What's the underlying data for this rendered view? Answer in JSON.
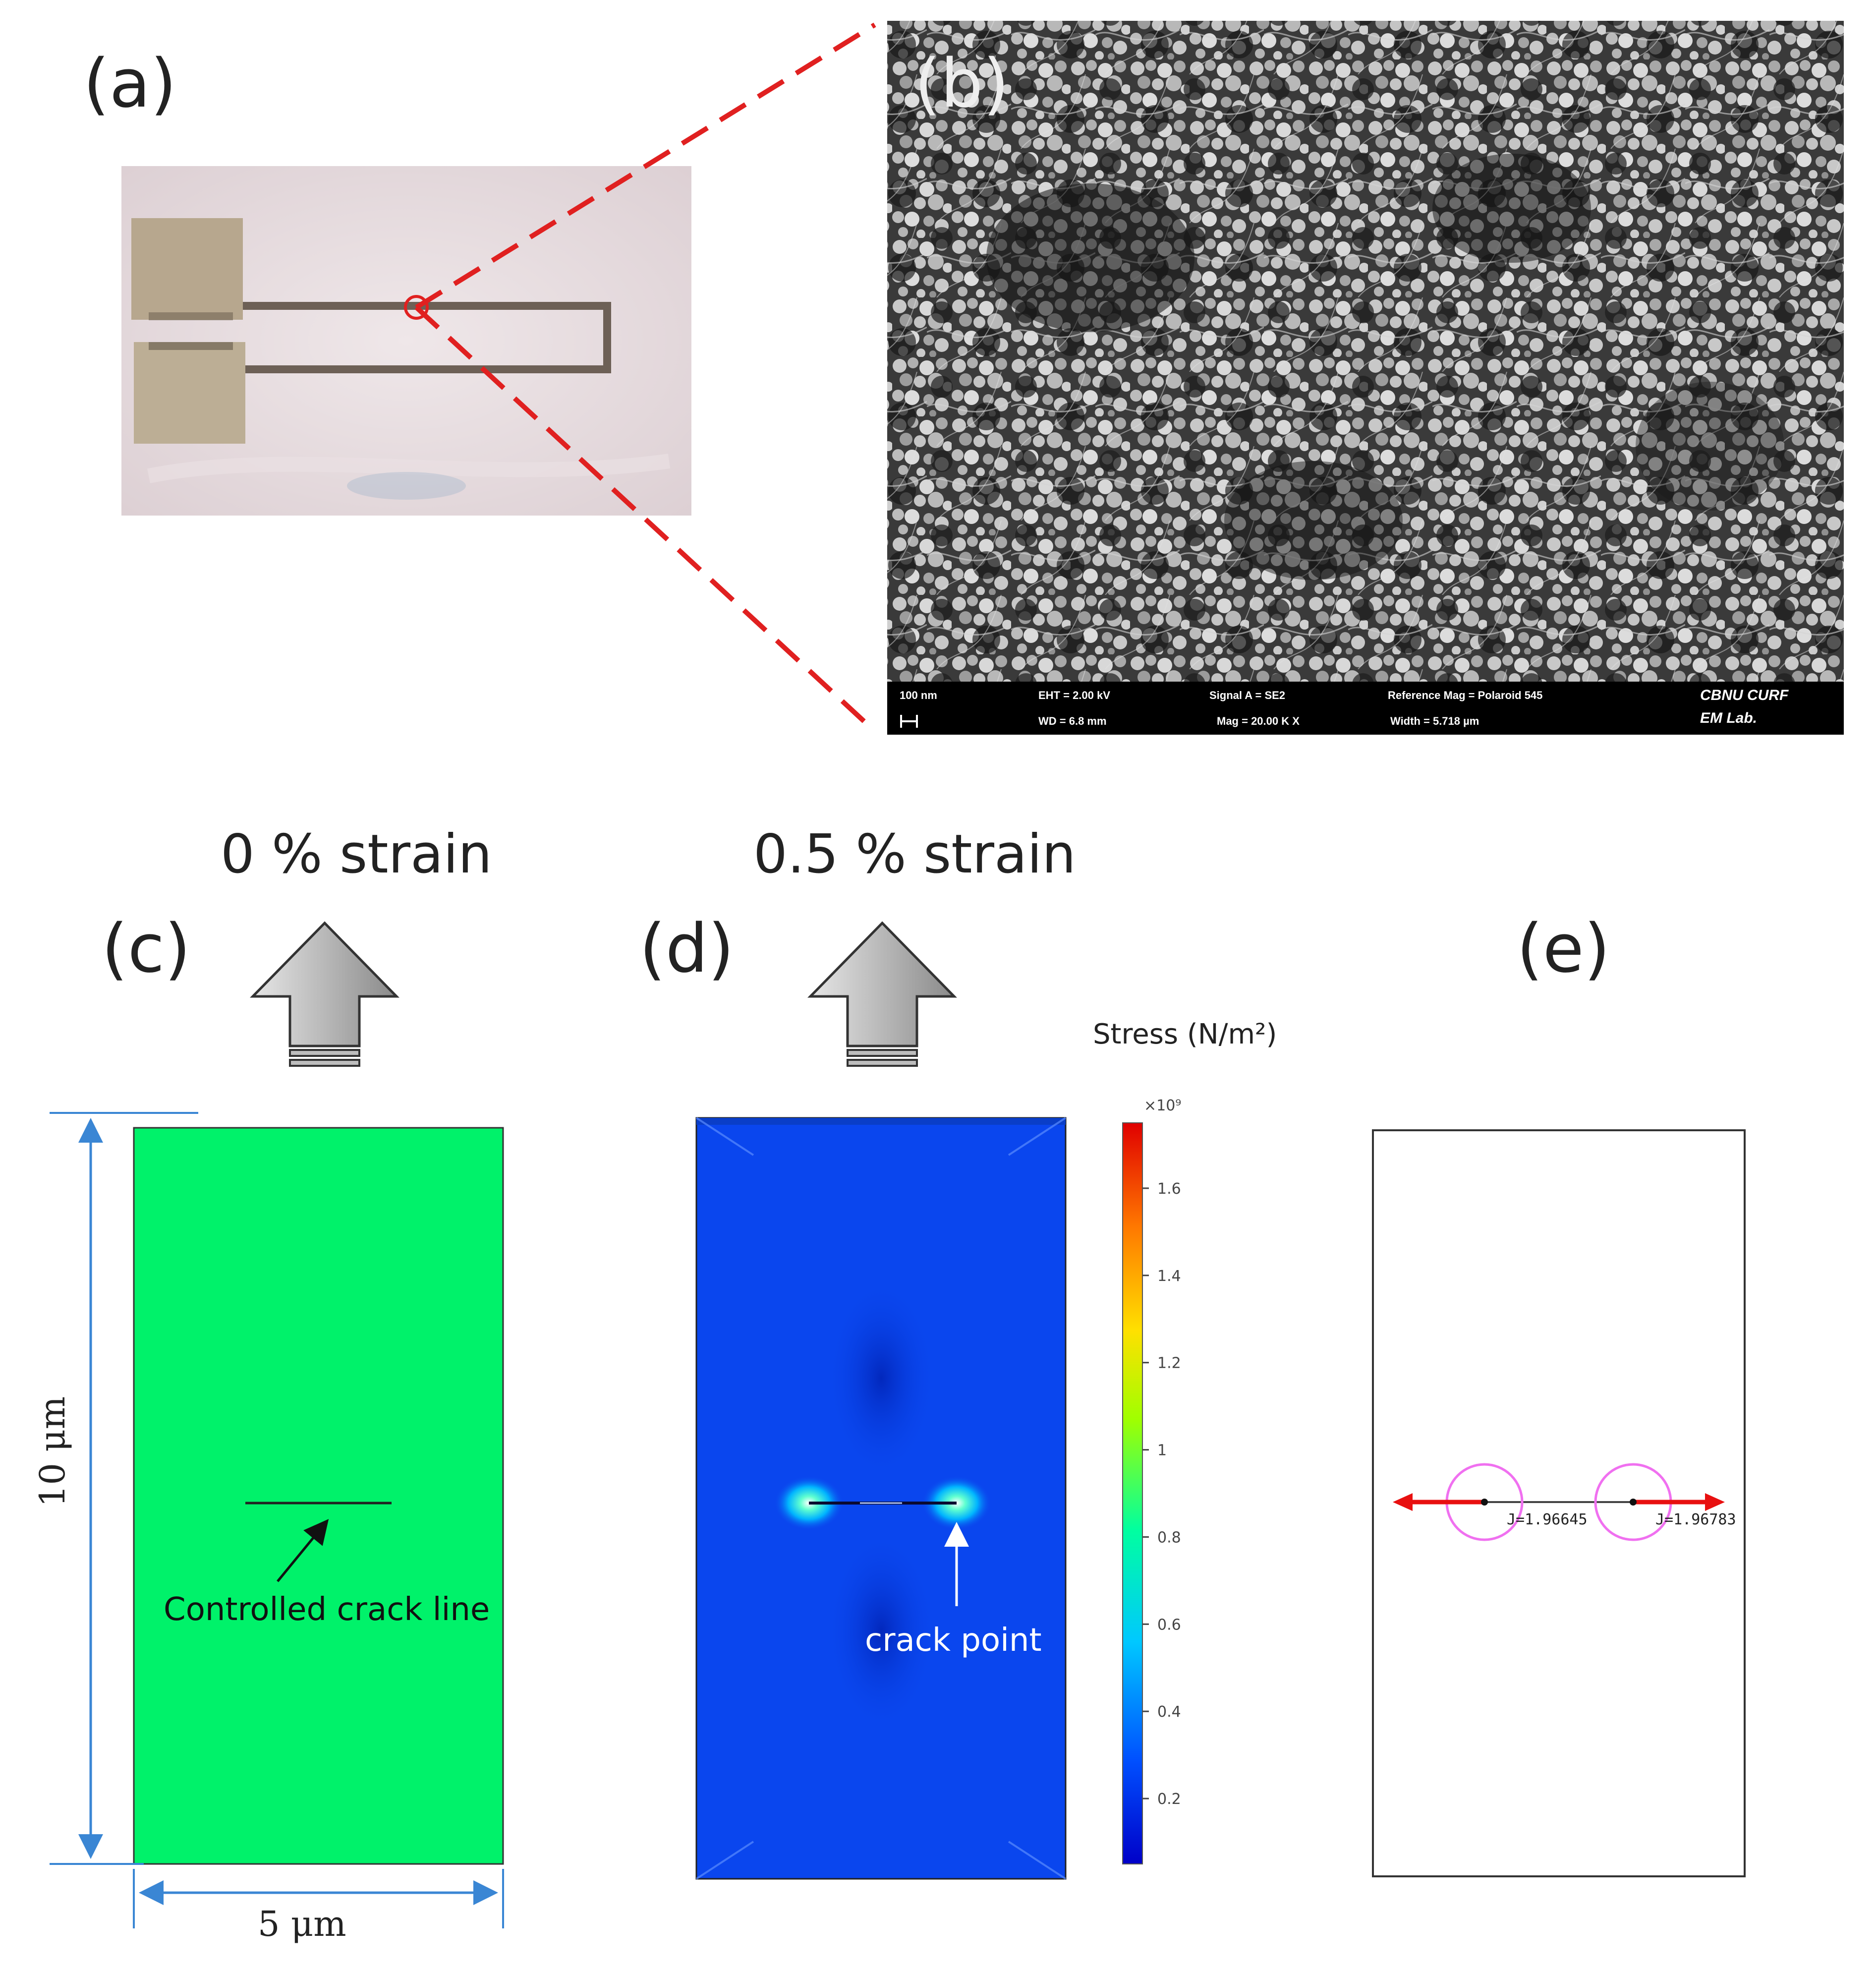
{
  "panels": {
    "a": {
      "label": "(a)"
    },
    "b": {
      "label": "(b)",
      "sem_bar": {
        "scale": "100 nm",
        "eht": "EHT = 2.00 kV",
        "wd": "WD = 6.8 mm",
        "signal": "Signal A = SE2",
        "mag": "Mag = 20.00 K X",
        "ref_mag": "Reference Mag = Polaroid 545",
        "width": "Width = 5.718 µm",
        "brand_line1": "CBNU CURF",
        "brand_line2": "EM Lab."
      }
    },
    "c": {
      "label": "(c)",
      "strain": "0 % strain",
      "height_dim": "10 μm",
      "width_dim": "5 μm",
      "annotation": "Controlled crack line"
    },
    "d": {
      "label": "(d)",
      "strain": "0.5 % strain",
      "annotation": "crack point"
    },
    "e": {
      "label": "(e)",
      "j_values": [
        "J=1.96645",
        "J=1.96783"
      ]
    }
  },
  "colorbar": {
    "title": "Stress (N/m²)",
    "multiplier": "×10⁹",
    "ticks": [
      "1.6",
      "1.4",
      "1.2",
      "1",
      "0.8",
      "0.6",
      "0.4",
      "0.2"
    ],
    "colormap": [
      "#0000c8",
      "#0050ff",
      "#00c8ff",
      "#00ffa0",
      "#a0ff00",
      "#ffe000",
      "#ff7800",
      "#e00000"
    ]
  },
  "colors": {
    "zoom_lines": "#e02020",
    "plate_green": "#00f26a",
    "plate_blue": "#0a46ee",
    "dimension_blue": "#3a86d4",
    "j_arrow": "#e81010",
    "j_circle": "#f070f0"
  }
}
